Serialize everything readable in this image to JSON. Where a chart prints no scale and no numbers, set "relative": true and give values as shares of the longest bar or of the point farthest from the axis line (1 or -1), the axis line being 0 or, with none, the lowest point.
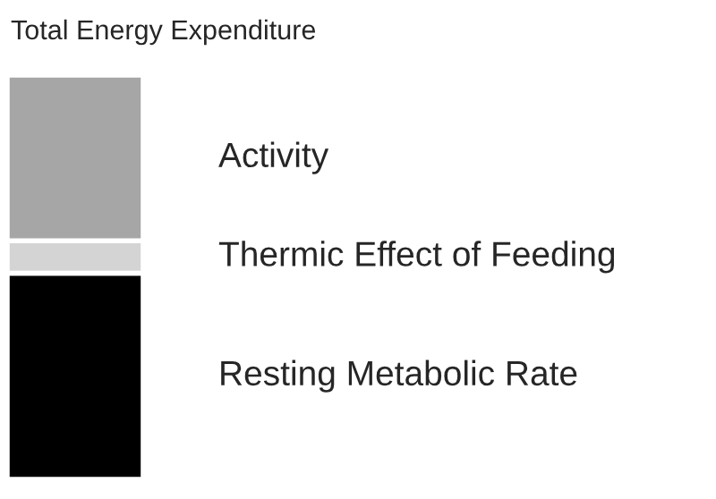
{
  "chart_data": {
    "type": "bar",
    "title": "Total Energy Expenditure",
    "categories": [
      null
    ],
    "relative": true,
    "stacked": true,
    "series": [
      {
        "name": "Resting Metabolic Rate",
        "color": "#000000",
        "values": [
          0.51
        ]
      },
      {
        "name": "Thermic Effect of Feeding",
        "color": "#d4d4d4",
        "values": [
          0.08
        ]
      },
      {
        "name": "Activity",
        "color": "#a6a6a6",
        "values": [
          0.41
        ]
      }
    ]
  }
}
